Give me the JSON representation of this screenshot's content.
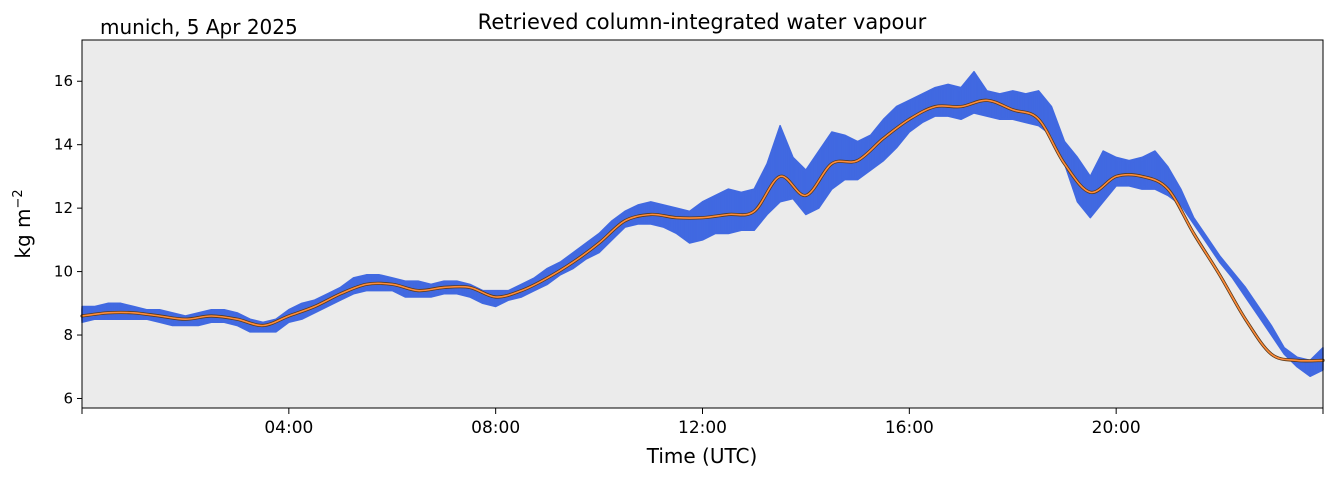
{
  "header": {
    "location_date": "munich, 5 Apr 2025"
  },
  "chart_data": {
    "type": "line",
    "title": "Retrieved column-integrated water vapour",
    "xlabel": "Time (UTC)",
    "ylabel": "kg m",
    "ylabel_exponent": "−2",
    "x_unit": "hours UTC",
    "xlim": [
      0,
      24
    ],
    "ylim": [
      5.7,
      17.3
    ],
    "yticks": [
      6,
      8,
      10,
      12,
      14,
      16
    ],
    "ytick_labels": [
      "6",
      "8",
      "10",
      "12",
      "14",
      "16"
    ],
    "xticks": [
      4,
      8,
      12,
      16,
      20
    ],
    "xtick_labels": [
      "04:00",
      "08:00",
      "12:00",
      "16:00",
      "20:00"
    ],
    "grid": false,
    "colors": {
      "raw": "#4169e1",
      "smoothed": "#ff8c3a",
      "smoothed_edge": "#5a3a1a",
      "axes_background": "#ebebeb"
    },
    "series": [
      {
        "key": "smoothed",
        "x": [
          0.0,
          0.5,
          1.0,
          1.5,
          2.0,
          2.5,
          3.0,
          3.5,
          4.0,
          4.5,
          5.0,
          5.5,
          6.0,
          6.5,
          7.0,
          7.5,
          8.0,
          8.5,
          9.0,
          9.5,
          10.0,
          10.5,
          11.0,
          11.5,
          12.0,
          12.5,
          13.0,
          13.5,
          14.0,
          14.5,
          15.0,
          15.5,
          16.0,
          16.5,
          17.0,
          17.5,
          18.0,
          18.5,
          19.0,
          19.5,
          20.0,
          20.5,
          21.0,
          21.5,
          22.0,
          22.5,
          23.0,
          23.5,
          24.0
        ],
        "y": [
          8.6,
          8.7,
          8.7,
          8.6,
          8.5,
          8.6,
          8.5,
          8.3,
          8.6,
          8.9,
          9.3,
          9.6,
          9.6,
          9.4,
          9.5,
          9.5,
          9.2,
          9.4,
          9.8,
          10.3,
          10.9,
          11.6,
          11.8,
          11.7,
          11.7,
          11.8,
          11.9,
          13.0,
          12.4,
          13.4,
          13.5,
          14.2,
          14.8,
          15.2,
          15.2,
          15.4,
          15.1,
          14.8,
          13.4,
          12.5,
          13.0,
          13.0,
          12.6,
          11.2,
          9.9,
          8.5,
          7.4,
          7.2,
          7.2
        ]
      },
      {
        "key": "raw",
        "x": [
          0.0,
          0.25,
          0.5,
          0.75,
          1.0,
          1.25,
          1.5,
          1.75,
          2.0,
          2.25,
          2.5,
          2.75,
          3.0,
          3.25,
          3.5,
          3.75,
          4.0,
          4.25,
          4.5,
          4.75,
          5.0,
          5.25,
          5.5,
          5.75,
          6.0,
          6.25,
          6.5,
          6.75,
          7.0,
          7.25,
          7.5,
          7.75,
          8.0,
          8.25,
          8.5,
          8.75,
          9.0,
          9.25,
          9.5,
          9.75,
          10.0,
          10.25,
          10.5,
          10.75,
          11.0,
          11.25,
          11.5,
          11.75,
          12.0,
          12.25,
          12.5,
          12.75,
          13.0,
          13.25,
          13.5,
          13.75,
          14.0,
          14.25,
          14.5,
          14.75,
          15.0,
          15.25,
          15.5,
          15.75,
          16.0,
          16.25,
          16.5,
          16.75,
          17.0,
          17.25,
          17.5,
          17.75,
          18.0,
          18.25,
          18.5,
          18.75,
          19.0,
          19.25,
          19.5,
          19.75,
          20.0,
          20.25,
          20.5,
          20.75,
          21.0,
          21.25,
          21.5,
          21.75,
          22.0,
          22.25,
          22.5,
          22.75,
          23.0,
          23.25,
          23.5,
          23.75,
          24.0
        ],
        "y_min": [
          8.4,
          8.5,
          8.5,
          8.5,
          8.5,
          8.5,
          8.4,
          8.3,
          8.3,
          8.3,
          8.4,
          8.4,
          8.3,
          8.1,
          8.1,
          8.1,
          8.4,
          8.5,
          8.7,
          8.9,
          9.1,
          9.3,
          9.4,
          9.4,
          9.4,
          9.2,
          9.2,
          9.2,
          9.3,
          9.3,
          9.2,
          9.0,
          8.9,
          9.1,
          9.2,
          9.4,
          9.6,
          9.9,
          10.1,
          10.4,
          10.6,
          11.0,
          11.4,
          11.5,
          11.5,
          11.4,
          11.2,
          10.9,
          11.0,
          11.2,
          11.2,
          11.3,
          11.3,
          11.8,
          12.2,
          12.3,
          11.8,
          12.0,
          12.6,
          12.9,
          12.9,
          13.2,
          13.5,
          13.9,
          14.4,
          14.7,
          14.9,
          14.9,
          14.8,
          15.0,
          14.9,
          14.8,
          14.8,
          14.7,
          14.6,
          14.3,
          13.4,
          12.2,
          11.7,
          12.2,
          12.7,
          12.7,
          12.6,
          12.6,
          12.4,
          12.1,
          11.5,
          10.9,
          10.3,
          9.8,
          9.2,
          8.6,
          8.0,
          7.4,
          7.0,
          6.7,
          6.9
        ],
        "y_max": [
          8.9,
          8.9,
          9.0,
          9.0,
          8.9,
          8.8,
          8.8,
          8.7,
          8.6,
          8.7,
          8.8,
          8.8,
          8.7,
          8.5,
          8.4,
          8.5,
          8.8,
          9.0,
          9.1,
          9.3,
          9.5,
          9.8,
          9.9,
          9.9,
          9.8,
          9.7,
          9.7,
          9.6,
          9.7,
          9.7,
          9.6,
          9.4,
          9.4,
          9.4,
          9.6,
          9.8,
          10.1,
          10.3,
          10.6,
          10.9,
          11.2,
          11.6,
          11.9,
          12.1,
          12.2,
          12.1,
          12.0,
          11.9,
          12.2,
          12.4,
          12.6,
          12.5,
          12.6,
          13.4,
          14.6,
          13.6,
          13.2,
          13.8,
          14.4,
          14.3,
          14.1,
          14.3,
          14.8,
          15.2,
          15.4,
          15.6,
          15.8,
          15.9,
          15.8,
          16.3,
          15.7,
          15.6,
          15.7,
          15.6,
          15.7,
          15.2,
          14.1,
          13.6,
          13.0,
          13.8,
          13.6,
          13.5,
          13.6,
          13.8,
          13.3,
          12.6,
          11.7,
          11.1,
          10.5,
          10.0,
          9.5,
          8.9,
          8.3,
          7.6,
          7.3,
          7.2,
          7.6
        ]
      }
    ]
  }
}
